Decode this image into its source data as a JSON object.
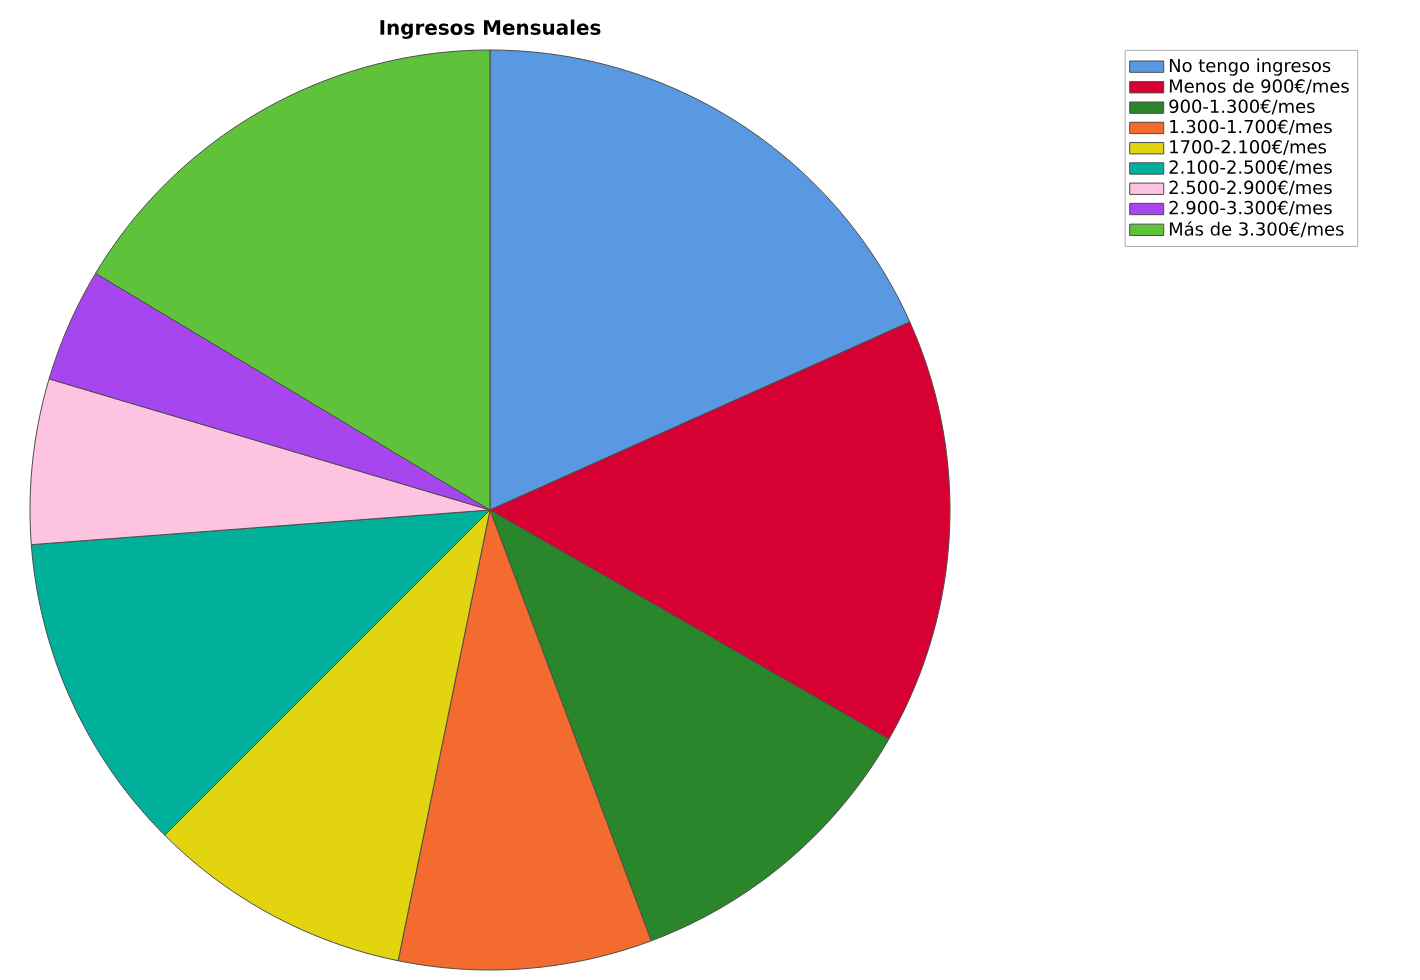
{
  "chart_data": {
    "type": "pie",
    "title": "Ingresos Mensuales",
    "categories": [
      "No tengo ingresos",
      "Menos de 900€/mes",
      "900-1.300€/mes",
      "1.300-1.700€/mes",
      "1700-2.100€/mes",
      "2.100-2.500€/mes",
      "2.500-2.900€/mes",
      "2.900-3.300€/mes",
      "Más de 3.300€/mes"
    ],
    "values": [
      18.3,
      15.0,
      11.0,
      8.9,
      9.3,
      11.3,
      5.8,
      4.0,
      16.4
    ],
    "colors": [
      "#5899e2",
      "#d60032",
      "#2a862a",
      "#f36b2e",
      "#e2d50f",
      "#00b09b",
      "#fdc3e0",
      "#a746ee",
      "#5ec23b"
    ],
    "legend": "top right"
  }
}
